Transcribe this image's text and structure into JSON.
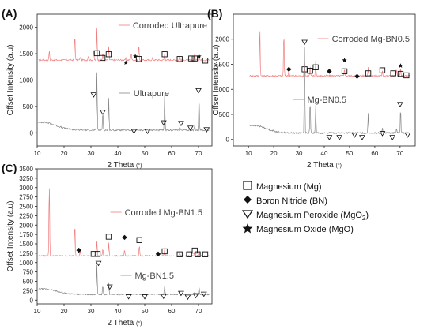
{
  "legend": {
    "items": [
      {
        "symbol": "square",
        "text": "Magnesium (Mg)"
      },
      {
        "symbol": "diamond",
        "text": "Boron Nitride (BN)"
      },
      {
        "symbol": "triangle",
        "text": "Magnesium Peroxide (MgO",
        "sub": "2",
        "tail": ")"
      },
      {
        "symbol": "star",
        "text": "Magnesium Oxide (MgO)"
      }
    ]
  },
  "chart_data": [
    {
      "type": "line",
      "panel": "(A)",
      "xlabel": "2 Theta",
      "xunit": "(°)",
      "ylabel": "Offset Intensity (a.u)",
      "xlim": [
        10,
        75
      ],
      "ylim": [
        -250,
        2250
      ],
      "xticks": [
        10,
        20,
        30,
        40,
        50,
        60,
        70
      ],
      "yticks": [
        0,
        500,
        1000,
        1500,
        2000
      ],
      "colors": {
        "top": "#f08080",
        "bottom": "#888888"
      },
      "series": [
        {
          "name": "Corroded Ultrapure",
          "position": "top",
          "base": 1380,
          "peaks": [
            [
              14.5,
              180
            ],
            [
              24,
              500
            ],
            [
              26,
              60
            ],
            [
              29,
              80
            ],
            [
              31,
              180
            ],
            [
              32.2,
              600
            ],
            [
              34.4,
              150
            ],
            [
              36.6,
              250
            ],
            [
              43,
              40
            ],
            [
              45,
              150
            ],
            [
              47.8,
              300
            ],
            [
              53,
              50
            ],
            [
              57.4,
              120
            ],
            [
              63,
              100
            ],
            [
              68.6,
              120
            ],
            [
              70.2,
              130
            ]
          ],
          "markers": [
            {
              "type": "square",
              "x": 32.2,
              "y": 1510
            },
            {
              "type": "square",
              "x": 34.3,
              "y": 1420
            },
            {
              "type": "square",
              "x": 36.6,
              "y": 1490
            },
            {
              "type": "star",
              "x": 43,
              "y": 1330
            },
            {
              "type": "star",
              "x": 46.5,
              "y": 1450
            },
            {
              "type": "square",
              "x": 47.8,
              "y": 1400
            },
            {
              "type": "square",
              "x": 57.4,
              "y": 1490
            },
            {
              "type": "square",
              "x": 63,
              "y": 1400
            },
            {
              "type": "square",
              "x": 67.3,
              "y": 1410
            },
            {
              "type": "square",
              "x": 68.6,
              "y": 1410
            },
            {
              "type": "star",
              "x": 70.2,
              "y": 1450
            },
            {
              "type": "square",
              "x": 72.5,
              "y": 1370
            }
          ]
        },
        {
          "name": "Ultrapure",
          "position": "bottom",
          "base": 50,
          "peaks": [
            [
              32.2,
              1100
            ],
            [
              34.4,
              350
            ],
            [
              36.6,
              600
            ],
            [
              57.4,
              700
            ],
            [
              63,
              80
            ],
            [
              68.6,
              100
            ],
            [
              70.2,
              650
            ]
          ],
          "markers": [
            {
              "type": "triangle",
              "x": 31,
              "y": 720
            },
            {
              "type": "triangle",
              "x": 34.4,
              "y": 390
            },
            {
              "type": "triangle",
              "x": 46,
              "y": 30
            },
            {
              "type": "triangle",
              "x": 51,
              "y": 30
            },
            {
              "type": "triangle",
              "x": 57,
              "y": 190
            },
            {
              "type": "triangle",
              "x": 63.5,
              "y": 180
            },
            {
              "type": "triangle",
              "x": 67,
              "y": 90
            },
            {
              "type": "triangle",
              "x": 70,
              "y": 800
            },
            {
              "type": "triangle",
              "x": 73,
              "y": 60
            }
          ]
        }
      ]
    },
    {
      "type": "line",
      "panel": "(B)",
      "xlabel": "2 Theta",
      "xunit": "(°)",
      "ylabel": "Offset Intensity (a.u)",
      "xlim": [
        4,
        76
      ],
      "ylim": [
        -130,
        2500
      ],
      "xticks": [
        10,
        20,
        30,
        40,
        50,
        60,
        70
      ],
      "yticks": [
        0,
        500,
        1000,
        1500,
        2000
      ],
      "colors": {
        "top": "#f08080",
        "bottom": "#888888"
      },
      "series": [
        {
          "name": "Corroded Mg-BN0.5",
          "position": "top",
          "base": 1270,
          "peaks": [
            [
              14.5,
              1000
            ],
            [
              24,
              900
            ],
            [
              26,
              150
            ],
            [
              32.2,
              350
            ],
            [
              34.4,
              200
            ],
            [
              36.6,
              300
            ],
            [
              48,
              150
            ],
            [
              57.4,
              180
            ],
            [
              63,
              120
            ],
            [
              68.6,
              120
            ],
            [
              70.2,
              150
            ]
          ],
          "markers": [
            {
              "type": "diamond",
              "x": 26,
              "y": 1400
            },
            {
              "type": "square",
              "x": 32.2,
              "y": 1400
            },
            {
              "type": "square",
              "x": 34.4,
              "y": 1370
            },
            {
              "type": "square",
              "x": 36.6,
              "y": 1440
            },
            {
              "type": "diamond",
              "x": 42,
              "y": 1360
            },
            {
              "type": "square",
              "x": 48,
              "y": 1360
            },
            {
              "type": "star",
              "x": 48,
              "y": 1580
            },
            {
              "type": "diamond",
              "x": 53,
              "y": 1260
            },
            {
              "type": "square",
              "x": 57.4,
              "y": 1320
            },
            {
              "type": "square",
              "x": 63,
              "y": 1380
            },
            {
              "type": "square",
              "x": 67.3,
              "y": 1320
            },
            {
              "type": "square",
              "x": 70.2,
              "y": 1310
            },
            {
              "type": "star",
              "x": 70.2,
              "y": 1470
            },
            {
              "type": "square",
              "x": 72.5,
              "y": 1280
            }
          ]
        },
        {
          "name": "Mg-BN0.5",
          "position": "bottom",
          "base": 130,
          "peaks": [
            [
              32.2,
              1700
            ],
            [
              34.4,
              650
            ],
            [
              36.6,
              550
            ],
            [
              57.4,
              400
            ],
            [
              63,
              100
            ],
            [
              68.6,
              100
            ],
            [
              70.2,
              500
            ]
          ],
          "markers": [
            {
              "type": "triangle",
              "x": 32.2,
              "y": 1940
            },
            {
              "type": "triangle",
              "x": 42,
              "y": 40
            },
            {
              "type": "triangle",
              "x": 46,
              "y": 40
            },
            {
              "type": "triangle",
              "x": 52,
              "y": 90
            },
            {
              "type": "triangle",
              "x": 55,
              "y": 40
            },
            {
              "type": "triangle",
              "x": 63,
              "y": 120
            },
            {
              "type": "triangle",
              "x": 67,
              "y": 40
            },
            {
              "type": "triangle",
              "x": 70,
              "y": 700
            },
            {
              "type": "triangle",
              "x": 73,
              "y": 90
            }
          ]
        }
      ]
    },
    {
      "type": "line",
      "panel": "(C)",
      "xlabel": "2 Theta",
      "xunit": "(°)",
      "ylabel": "Offset Intensity (a.u)",
      "xlim": [
        10,
        75
      ],
      "ylim": [
        -100,
        3500
      ],
      "xticks": [
        10,
        20,
        30,
        40,
        50,
        60,
        70
      ],
      "yticks": [
        0,
        250,
        500,
        750,
        1000,
        1250,
        1500,
        1750,
        2000,
        2250,
        2500,
        2750,
        3000,
        3250,
        3500
      ],
      "colors": {
        "top": "#f08080",
        "bottom": "#888888"
      },
      "series": [
        {
          "name": "Corroded Mg-BN1.5",
          "position": "top",
          "base": 1180,
          "peaks": [
            [
              14.5,
              2000
            ],
            [
              24,
              900
            ],
            [
              26,
              150
            ],
            [
              32.2,
              400
            ],
            [
              34.4,
              200
            ],
            [
              36.6,
              350
            ],
            [
              42.5,
              150
            ],
            [
              48,
              300
            ],
            [
              57.4,
              200
            ],
            [
              63,
              100
            ],
            [
              68.6,
              120
            ],
            [
              70.2,
              150
            ]
          ],
          "markers": [
            {
              "type": "diamond",
              "x": 25.5,
              "y": 1330
            },
            {
              "type": "square",
              "x": 31,
              "y": 1230
            },
            {
              "type": "square",
              "x": 32.5,
              "y": 1230
            },
            {
              "type": "square",
              "x": 36.6,
              "y": 1690
            },
            {
              "type": "diamond",
              "x": 42.5,
              "y": 1670
            },
            {
              "type": "square",
              "x": 48,
              "y": 1600
            },
            {
              "type": "diamond",
              "x": 55,
              "y": 1230
            },
            {
              "type": "square",
              "x": 57.4,
              "y": 1300
            },
            {
              "type": "square",
              "x": 63,
              "y": 1220
            },
            {
              "type": "square",
              "x": 66.5,
              "y": 1220
            },
            {
              "type": "square",
              "x": 68.6,
              "y": 1320
            },
            {
              "type": "square",
              "x": 69.7,
              "y": 1220
            },
            {
              "type": "square",
              "x": 72.5,
              "y": 1220
            }
          ]
        },
        {
          "name": "Mg-BN1.5",
          "position": "bottom",
          "base": 150,
          "peaks": [
            [
              32.2,
              800
            ],
            [
              34.4,
              250
            ],
            [
              36.6,
              300
            ],
            [
              57.4,
              250
            ],
            [
              63,
              80
            ],
            [
              68.6,
              80
            ],
            [
              70.2,
              200
            ]
          ],
          "markers": [
            {
              "type": "triangle",
              "x": 32.8,
              "y": 980
            },
            {
              "type": "triangle",
              "x": 37,
              "y": 350
            },
            {
              "type": "triangle",
              "x": 44,
              "y": 90
            },
            {
              "type": "triangle",
              "x": 50,
              "y": 90
            },
            {
              "type": "triangle",
              "x": 57,
              "y": 100
            },
            {
              "type": "triangle",
              "x": 63.5,
              "y": 180
            },
            {
              "type": "triangle",
              "x": 66,
              "y": 80
            },
            {
              "type": "triangle",
              "x": 69,
              "y": 120
            },
            {
              "type": "triangle",
              "x": 72,
              "y": 160
            }
          ]
        }
      ]
    }
  ]
}
